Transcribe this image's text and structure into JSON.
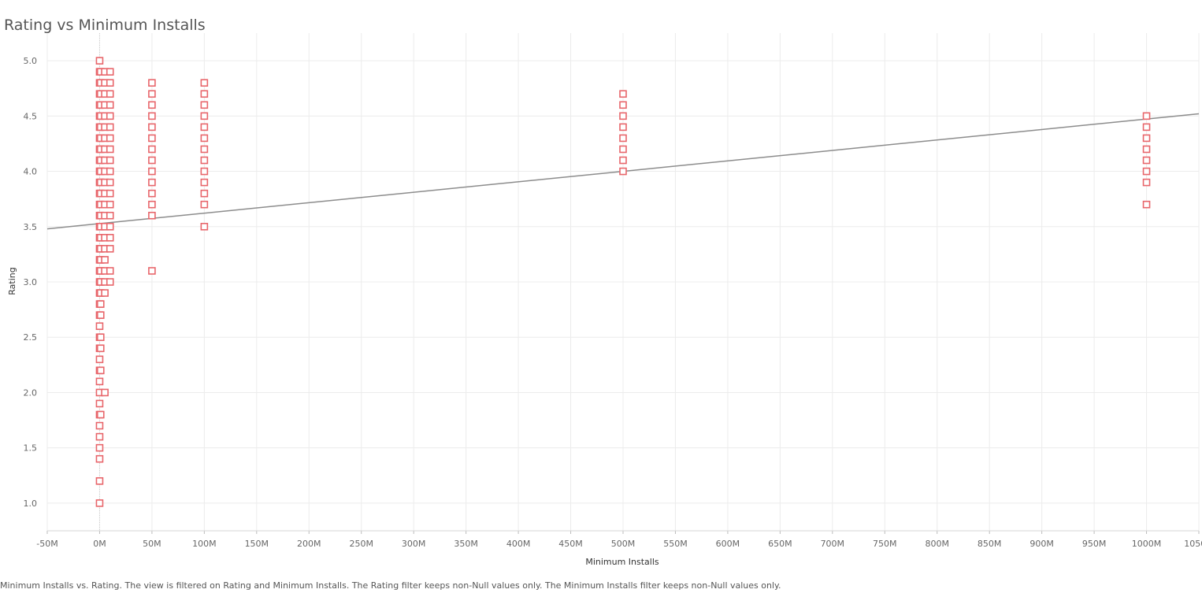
{
  "chart_data": {
    "type": "scatter",
    "title": "Rating vs Minimum Installs",
    "xlabel": "Minimum Installs",
    "ylabel": "Rating",
    "xlim": [
      -50000000,
      1050000000
    ],
    "ylim": [
      0.75,
      5.25
    ],
    "grid": true,
    "marker": "hollow-square",
    "colors": {
      "marker": "#e8666b",
      "trend": "#8c8c8c",
      "grid": "#ececec",
      "zero": "#cfcfcf"
    },
    "x_ticks": [
      "-50M",
      "0M",
      "50M",
      "100M",
      "150M",
      "200M",
      "250M",
      "300M",
      "350M",
      "400M",
      "450M",
      "500M",
      "550M",
      "600M",
      "650M",
      "700M",
      "750M",
      "800M",
      "850M",
      "900M",
      "950M",
      "1000M",
      "1050M"
    ],
    "y_ticks": [
      "1.0",
      "1.5",
      "2.0",
      "2.5",
      "3.0",
      "3.5",
      "4.0",
      "4.5",
      "5.0"
    ],
    "trend_line": {
      "x": [
        -50000000,
        1050000000
      ],
      "y": [
        3.48,
        4.52
      ]
    },
    "series": [
      {
        "x": 0,
        "y": [
          1.0,
          1.2,
          1.4,
          1.5,
          1.6,
          1.7,
          1.8,
          1.9,
          2.0,
          2.1,
          2.2,
          2.3,
          2.4,
          2.5,
          2.6,
          2.7,
          2.8,
          2.9,
          3.0,
          3.1,
          3.2,
          3.3,
          3.4,
          3.5,
          3.6,
          3.7,
          3.8,
          3.9,
          4.0,
          4.1,
          4.2,
          4.3,
          4.4,
          4.5,
          4.6,
          4.7,
          4.8,
          4.9,
          5.0
        ]
      },
      {
        "x": 1000000,
        "y": [
          1.8,
          2.2,
          2.4,
          2.5,
          2.7,
          2.8,
          2.9,
          3.0,
          3.1,
          3.2,
          3.3,
          3.4,
          3.5,
          3.6,
          3.7,
          3.8,
          3.9,
          4.0,
          4.1,
          4.2,
          4.3,
          4.4,
          4.5,
          4.6,
          4.7,
          4.8,
          4.9
        ]
      },
      {
        "x": 5000000,
        "y": [
          2.0,
          2.9,
          3.0,
          3.1,
          3.2,
          3.3,
          3.4,
          3.5,
          3.6,
          3.7,
          3.8,
          3.9,
          4.0,
          4.1,
          4.2,
          4.3,
          4.4,
          4.5,
          4.6,
          4.7,
          4.8,
          4.9
        ]
      },
      {
        "x": 10000000,
        "y": [
          3.0,
          3.1,
          3.3,
          3.4,
          3.5,
          3.6,
          3.7,
          3.8,
          3.9,
          4.0,
          4.1,
          4.2,
          4.3,
          4.4,
          4.5,
          4.6,
          4.7,
          4.8,
          4.9
        ]
      },
      {
        "x": 50000000,
        "y": [
          3.1,
          3.6,
          3.7,
          3.8,
          3.9,
          4.0,
          4.1,
          4.2,
          4.3,
          4.4,
          4.5,
          4.6,
          4.7,
          4.8
        ]
      },
      {
        "x": 100000000,
        "y": [
          3.5,
          3.7,
          3.8,
          3.9,
          4.0,
          4.1,
          4.2,
          4.3,
          4.4,
          4.5,
          4.6,
          4.7,
          4.8
        ]
      },
      {
        "x": 500000000,
        "y": [
          4.0,
          4.1,
          4.2,
          4.3,
          4.4,
          4.5,
          4.6,
          4.7
        ]
      },
      {
        "x": 1000000000,
        "y": [
          3.7,
          3.9,
          4.0,
          4.1,
          4.2,
          4.3,
          4.4,
          4.5
        ]
      }
    ]
  },
  "footnote": "Minimum Installs vs. Rating. The view is filtered on Rating and Minimum Installs. The Rating filter keeps non-Null values only. The Minimum Installs filter keeps non-Null values only."
}
